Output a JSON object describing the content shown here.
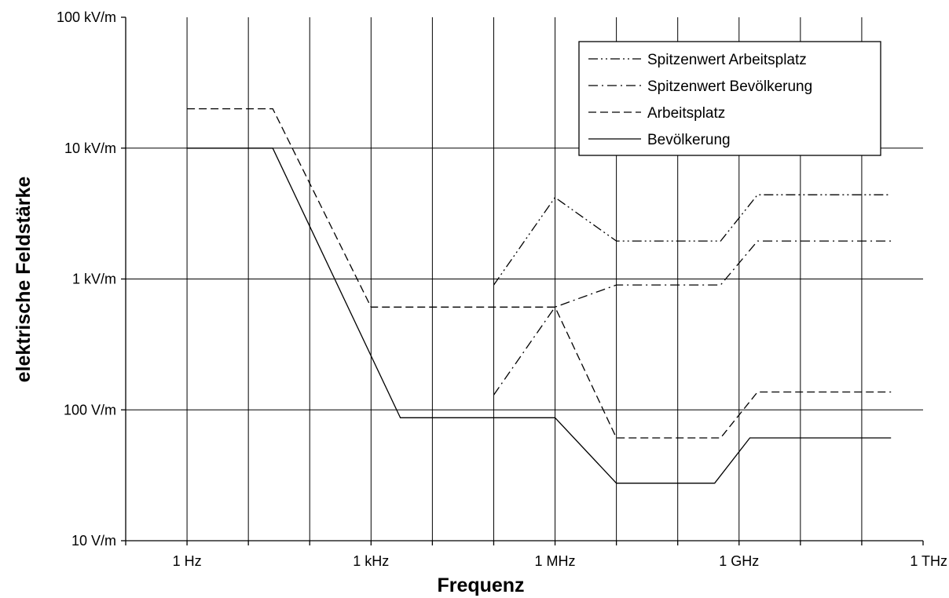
{
  "chart_data": {
    "type": "line",
    "title": "",
    "xlabel": "Frequenz",
    "ylabel": "elektrische Feldstärke",
    "x_scale": "log",
    "y_scale": "log",
    "xlim": [
      0.1,
      1000000000000
    ],
    "ylim": [
      10,
      100000
    ],
    "x_tick_values": [
      1,
      1000,
      1000000,
      1000000000,
      1000000000000
    ],
    "x_tick_labels": [
      "1 Hz",
      "1 kHz",
      "1 MHz",
      "1 GHz",
      "1 THz"
    ],
    "y_tick_values": [
      10,
      100,
      1000,
      10000,
      100000
    ],
    "y_tick_labels": [
      "10 V/m",
      "100 V/m",
      "1 kV/m",
      "10 kV/m",
      "100 kV/m"
    ],
    "grid": true,
    "legend_position": "top-right",
    "series": [
      {
        "name": "Spitzenwert Arbeitsplatz",
        "dash": "dash-dot-dot",
        "points": [
          [
            100000,
            900
          ],
          [
            1000000,
            4200
          ],
          [
            10000000,
            1950
          ],
          [
            500000000,
            1950
          ],
          [
            2000000000,
            4400
          ],
          [
            300000000000,
            4400
          ]
        ]
      },
      {
        "name": "Spitzenwert Bevölkerung",
        "dash": "dash-dot",
        "points": [
          [
            100000,
            130
          ],
          [
            1000000,
            610
          ],
          [
            10000000,
            900
          ],
          [
            500000000,
            900
          ],
          [
            2000000000,
            1950
          ],
          [
            300000000000,
            1950
          ]
        ]
      },
      {
        "name": "Arbeitsplatz",
        "dash": "dashed",
        "points": [
          [
            1,
            20000
          ],
          [
            25,
            20000
          ],
          [
            1000,
            610
          ],
          [
            1000000,
            610
          ],
          [
            10000000,
            61
          ],
          [
            500000000,
            61
          ],
          [
            2000000000,
            137
          ],
          [
            300000000000,
            137
          ]
        ]
      },
      {
        "name": "Bevölkerung",
        "dash": "solid",
        "points": [
          [
            1,
            10000
          ],
          [
            25,
            10000
          ],
          [
            3000,
            87
          ],
          [
            1000000,
            87
          ],
          [
            10000000,
            27.5
          ],
          [
            400000000,
            27.5
          ],
          [
            1500000000,
            61
          ],
          [
            300000000000,
            61
          ]
        ]
      }
    ]
  }
}
